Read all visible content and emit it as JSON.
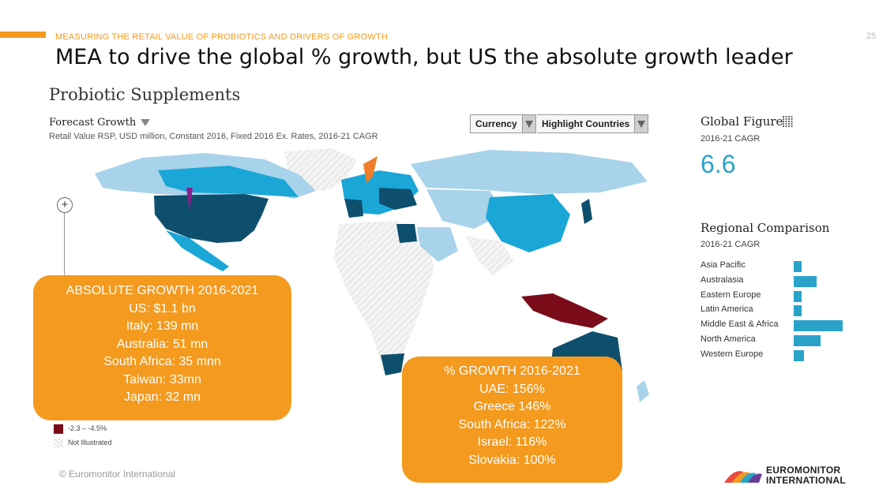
{
  "header": {
    "kicker": "MEASURING THE RETAIL VALUE OF PROBIOTICS AND DRIVERS OF GROWTH",
    "page_number": "25",
    "headline": "MEA to drive the global % growth, but US the absolute growth leader"
  },
  "panel": {
    "title": "Probiotic Supplements",
    "forecast_label": "Forecast Growth",
    "subtitle": "Retail Value RSP, USD million, Constant 2016, Fixed 2016 Ex. Rates, 2016-21 CAGR",
    "currency_label": "Currency",
    "highlight_label": "Highlight Countries"
  },
  "global": {
    "title": "Global Figure",
    "period": "2016-21 CAGR",
    "value": "6.6"
  },
  "regional": {
    "title": "Regional Comparison",
    "period": "2016-21 CAGR",
    "items": [
      {
        "label": "Asia Pacific",
        "value": 1.0
      },
      {
        "label": "Australasia",
        "value": 2.9
      },
      {
        "label": "Eastern Europe",
        "value": 1.0
      },
      {
        "label": "Latin America",
        "value": 1.0
      },
      {
        "label": "Middle East & Africa",
        "value": 6.3
      },
      {
        "label": "North America",
        "value": 3.5
      },
      {
        "label": "Western Europe",
        "value": 1.3
      }
    ]
  },
  "legend": {
    "items": [
      {
        "label": "-2.3 – -4.5%",
        "color": "#7a0c1a"
      },
      {
        "label": "Not Illustrated",
        "color": "hatch"
      }
    ]
  },
  "absolute_callout": {
    "lines": [
      "ABSOLUTE GROWTH 2016-2021",
      "US: $1.1 bn",
      "Italy: 139 mn",
      "Australia: 51 mn",
      "South Africa: 35 mnn",
      "Taiwan: 33mn",
      "Japan: 32 mn"
    ]
  },
  "percent_callout": {
    "lines": [
      "% GROWTH 2016-2021",
      "UAE: 156%",
      "Greece 146%",
      "South Africa: 122%",
      "Israel: 116%",
      "Slovakia: 100%"
    ]
  },
  "footer": {
    "copyright": "© Euromonitor International",
    "logo_line1": "EUROMONITOR",
    "logo_line2": "INTERNATIONAL"
  },
  "colors": {
    "accent": "#f39a1f",
    "map_dark": "#0e4f6e",
    "map_mid": "#1aa6d6",
    "map_light": "#a9d3ea",
    "map_decline": "#7a0c1a",
    "bar": "#2ba3c9"
  }
}
